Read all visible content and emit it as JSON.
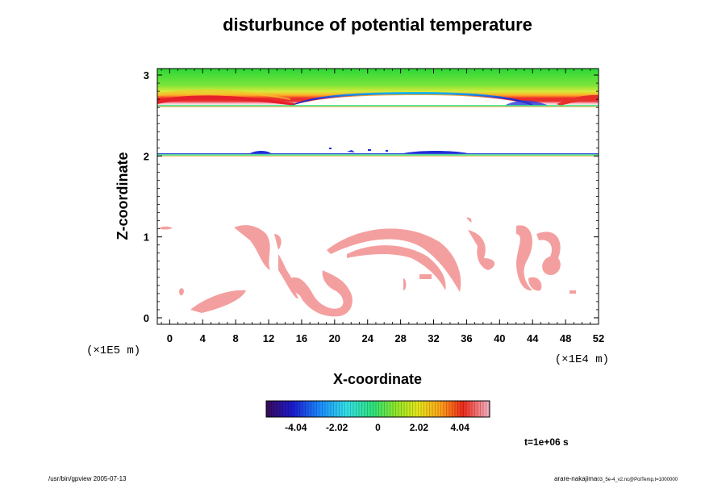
{
  "chart_data": {
    "type": "heatmap",
    "title": "disturbunce of potential temperature",
    "xlabel": "X-coordinate",
    "ylabel": "Z-coordinate",
    "x_unit": "(×1E4 m)",
    "y_unit": "(×1E5 m)",
    "xlim": [
      -1.5,
      52
    ],
    "ylim": [
      -0.08,
      3.08
    ],
    "x_ticks": [
      "0",
      "4",
      "8",
      "12",
      "16",
      "20",
      "24",
      "28",
      "32",
      "36",
      "40",
      "44",
      "48",
      "52"
    ],
    "y_ticks": [
      "0",
      "1",
      "2",
      "3"
    ],
    "colorbar": {
      "min": -5.5,
      "max": 5.5,
      "ticks": [
        "-4.04",
        "-2.02",
        "0",
        "2.02",
        "4.04"
      ]
    },
    "time_label": "t=1e+06 s",
    "bands": [
      {
        "name": "upper-layer",
        "z_top": 3.08,
        "z_bottom": 2.63,
        "value": 1.8
      },
      {
        "name": "upper-interface-line",
        "z": 2.63
      },
      {
        "name": "middle-interface-line",
        "z": 2.0
      }
    ]
  },
  "footer": {
    "left": "/usr/bin/gpview 2005-07-13",
    "right_main": "arare-nakajima",
    "right_sub": "03_5e-4_v2.nc@PotTemp,t=1000000"
  }
}
